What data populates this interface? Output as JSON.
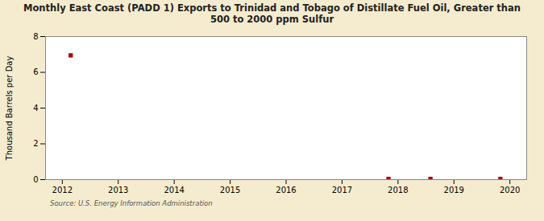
{
  "chart_data": {
    "type": "scatter",
    "title": "Monthly East Coast (PADD 1) Exports to Trinidad and Tobago of Distillate Fuel Oil, Greater than\n500 to 2000 ppm Sulfur",
    "ylabel": "Thousand Barrels per Day",
    "source": "Source: U.S. Energy Information Administration",
    "x": [
      2012.15,
      2017.83,
      2018.58,
      2019.83
    ],
    "values": [
      6.949,
      0.04,
      0.04,
      0.04
    ],
    "color": "#aa0000",
    "marker": "square",
    "xlim": [
      2011.7,
      2020.3
    ],
    "xticks": [
      2012,
      2013,
      2014,
      2015,
      2016,
      2017,
      2018,
      2019,
      2020
    ],
    "ylim": [
      0,
      8
    ],
    "yticks": [
      0,
      2,
      4,
      6,
      8
    ],
    "grid": true
  }
}
